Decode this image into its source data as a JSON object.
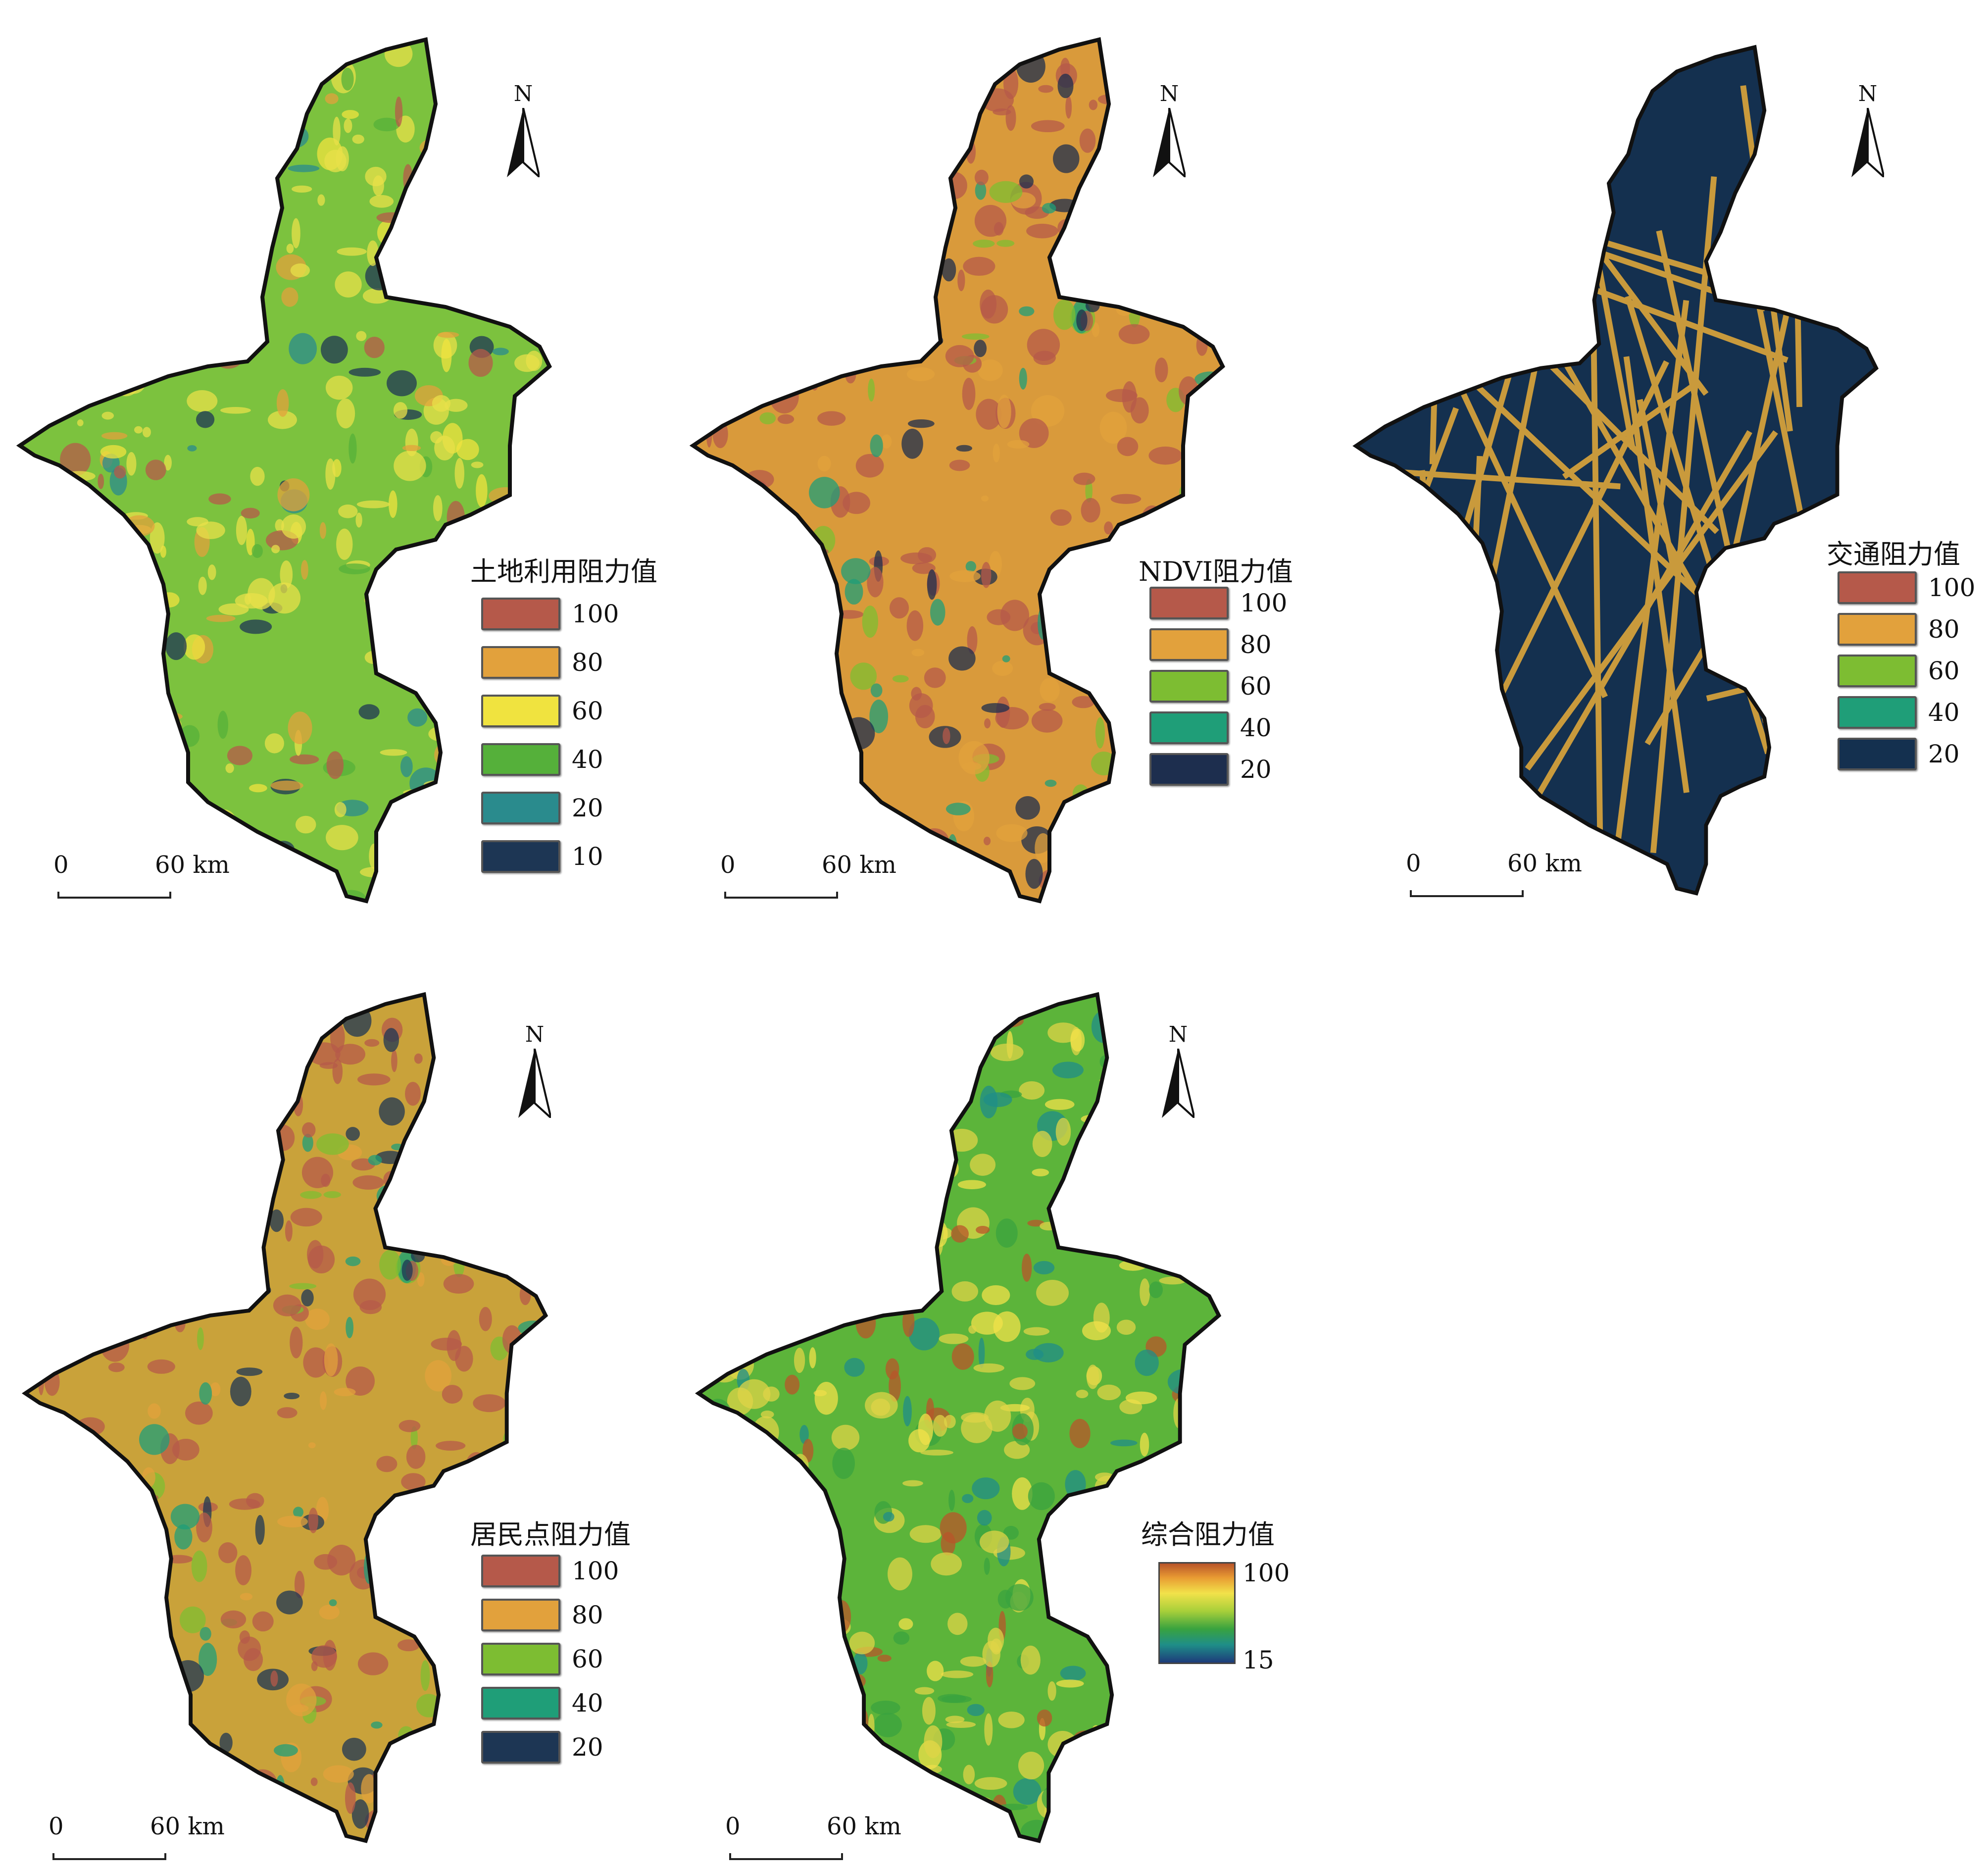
{
  "panels": [
    {
      "id": "landuse",
      "legend_title": "土地利用阻力值",
      "legend": [
        {
          "label": "100",
          "color": "#b5594a"
        },
        {
          "label": "80",
          "color": "#e2a13c"
        },
        {
          "label": "60",
          "color": "#f0e33f"
        },
        {
          "label": "40",
          "color": "#55b03a"
        },
        {
          "label": "20",
          "color": "#2a8b8d"
        },
        {
          "label": "10",
          "color": "#1d3654"
        }
      ],
      "fill": "#7cc23e",
      "accent": "#e8e04a"
    },
    {
      "id": "ndvi",
      "legend_title": "NDVI阻力值",
      "legend": [
        {
          "label": "100",
          "color": "#b5594a"
        },
        {
          "label": "80",
          "color": "#e2a13c"
        },
        {
          "label": "60",
          "color": "#7dbd32"
        },
        {
          "label": "40",
          "color": "#1f9e78"
        },
        {
          "label": "20",
          "color": "#1d2e4e"
        }
      ],
      "fill": "#d99a3b",
      "accent": "#b5594a"
    },
    {
      "id": "traffic",
      "legend_title": "交通阻力值",
      "legend": [
        {
          "label": "100",
          "color": "#b5594a"
        },
        {
          "label": "80",
          "color": "#e2a13c"
        },
        {
          "label": "60",
          "color": "#7dbd32"
        },
        {
          "label": "40",
          "color": "#1f9e78"
        },
        {
          "label": "20",
          "color": "#14304f"
        }
      ],
      "fill": "#14304f",
      "accent": "#c99a3c"
    },
    {
      "id": "settlement",
      "legend_title": "居民点阻力值",
      "legend": [
        {
          "label": "100",
          "color": "#b5594a"
        },
        {
          "label": "80",
          "color": "#e2a13c"
        },
        {
          "label": "60",
          "color": "#7dbd32"
        },
        {
          "label": "40",
          "color": "#1f9e78"
        },
        {
          "label": "20",
          "color": "#1d3654"
        }
      ],
      "fill": "#c9a23a",
      "accent": "#b5594a"
    },
    {
      "id": "composite",
      "legend_title": "综合阻力值",
      "gradient": {
        "max": "100",
        "min": "15"
      },
      "fill": "#5cb43a",
      "accent": "#dfd447"
    }
  ],
  "north_label": "N",
  "scale": {
    "zero": "0",
    "distance": "60 km"
  }
}
